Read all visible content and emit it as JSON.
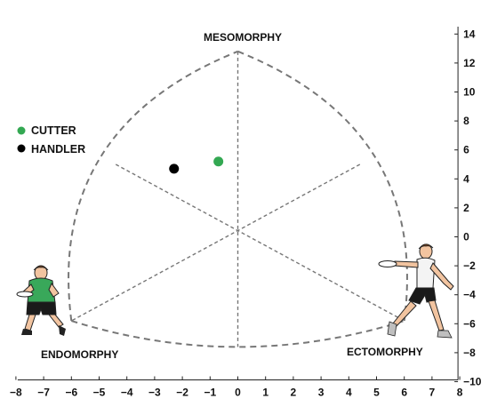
{
  "chart_data": {
    "type": "scatter",
    "title": "",
    "xlabel": "",
    "ylabel": "",
    "xlim": [
      -8,
      8
    ],
    "ylim": [
      -10,
      15
    ],
    "x_ticks": [
      -8,
      -7,
      -6,
      -5,
      -4,
      -3,
      -2,
      -1,
      0,
      1,
      2,
      3,
      4,
      5,
      6,
      7,
      8
    ],
    "y_ticks": [
      -10,
      -8,
      -6,
      -4,
      -2,
      0,
      2,
      4,
      6,
      8,
      10,
      12,
      14
    ],
    "grid": false,
    "legend_placement": "top-left",
    "somatochart": {
      "vertices": {
        "mesomorphy": [
          0,
          12.8
        ],
        "endomorphy": [
          -6,
          -5.8
        ],
        "ectomorphy": [
          6,
          -5.8
        ]
      },
      "center": [
        0,
        0.4
      ],
      "edge_midpoints": {
        "left": [
          -4.4,
          5.0
        ],
        "right": [
          4.4,
          5.0
        ],
        "bottom": [
          0,
          -7.6
        ]
      },
      "labels": {
        "mesomorphy": "MESOMORPHY",
        "endomorphy": "ENDOMORPHY",
        "ectomorphy": "ECTOMORPHY"
      }
    },
    "series": [
      {
        "name": "CUTTER",
        "color": "#33a852",
        "points": [
          {
            "x": -0.7,
            "y": 5.2
          }
        ]
      },
      {
        "name": "HANDLER",
        "color": "#000000",
        "points": [
          {
            "x": -2.3,
            "y": 4.7
          }
        ]
      }
    ]
  },
  "illustrations": {
    "left_player_icon": "frisbee-player-endomorph-icon",
    "right_player_icon": "frisbee-player-ectomorph-icon"
  },
  "colors": {
    "axis": "#222222",
    "outline": "#777777",
    "inner_lines": "#777777",
    "green_shirt": "#39a85a",
    "white_shirt": "#f4f4f4",
    "shorts": "#1a1a1a",
    "skin": "#f2c4a0",
    "hair": "#6b3e1e"
  }
}
